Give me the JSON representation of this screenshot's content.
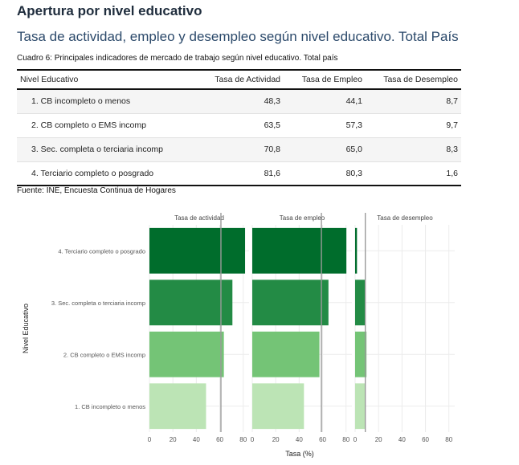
{
  "header": {
    "title": "Apertura por nivel educativo",
    "subtitle": "Tasa de actividad, empleo y desempleo según nivel educativo. Total País"
  },
  "table": {
    "caption": "Cuadro 6: Principales indicadores de mercado de trabajo según nivel educativo. Total país",
    "columns": [
      "Nivel Educativo",
      "Tasa de Actividad",
      "Tasa de Empleo",
      "Tasa de Desempleo"
    ],
    "rows": [
      [
        "1. CB incompleto o menos",
        "48,3",
        "44,1",
        "8,7"
      ],
      [
        "2. CB completo o EMS incomp",
        "63,5",
        "57,3",
        "9,7"
      ],
      [
        "3. Sec. completa o terciaria incomp",
        "70,8",
        "65,0",
        "8,3"
      ],
      [
        "4. Terciario completo o posgrado",
        "81,6",
        "80,3",
        "1,6"
      ]
    ],
    "source": "Fuente: INE, Encuesta Continua de Hogares"
  },
  "chart_data": {
    "type": "bar",
    "orientation": "horizontal",
    "facets": [
      "Tasa de actividad",
      "Tasa de empleo",
      "Tasa de desempleo"
    ],
    "categories": [
      "1. CB incompleto o menos",
      "2. CB completo o EMS incomp",
      "3. Sec. completa o terciaria incomp",
      "4. Terciario completo o posgrado"
    ],
    "series": [
      {
        "values": [
          48.3,
          63.5,
          70.8,
          81.6
        ]
      },
      {
        "values": [
          44.1,
          57.3,
          65.0,
          80.3
        ]
      },
      {
        "values": [
          8.7,
          9.7,
          8.3,
          1.6
        ]
      }
    ],
    "reference_lines": [
      61,
      59,
      8.7
    ],
    "colors": [
      "#bce4b5",
      "#74c476",
      "#238b45",
      "#006d2c"
    ],
    "xlabel": "Tasa (%)",
    "ylabel": "Nivel Educativo",
    "xlim": [
      0,
      85
    ],
    "xticks": [
      0,
      20,
      40,
      60,
      80
    ],
    "grid": true,
    "legend": "none"
  }
}
